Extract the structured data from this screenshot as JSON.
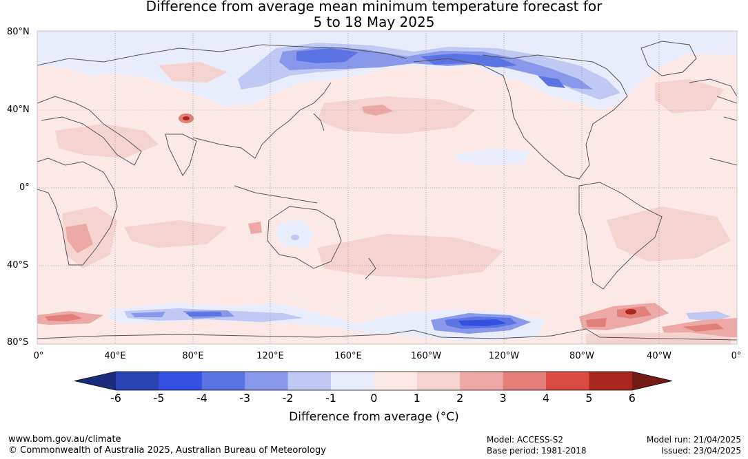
{
  "title_line1": "Difference from average mean minimum temperature forecast for",
  "title_line2": "5 to 18 May 2025",
  "lat_labels": [
    "80°N",
    "40°N",
    "0°",
    "40°S",
    "80°S"
  ],
  "lon_labels": [
    "0°",
    "40°E",
    "80°E",
    "120°E",
    "160°E",
    "160°W",
    "120°W",
    "80°W",
    "40°W",
    "0°"
  ],
  "colorbar": {
    "label": "Difference from average (°C)",
    "ticks": [
      "-6",
      "-5",
      "-4",
      "-3",
      "-2",
      "-1",
      "0",
      "1",
      "2",
      "3",
      "4",
      "5",
      "6"
    ],
    "colors": [
      "#1a2c7e",
      "#2a43b2",
      "#3350e0",
      "#5b74e4",
      "#8898ea",
      "#c0c8f4",
      "#e9ecfb",
      "#fce8e6",
      "#f5d3d0",
      "#eca9a5",
      "#e27f78",
      "#d94a40",
      "#a8281f",
      "#751b16"
    ]
  },
  "footer": {
    "url": "www.bom.gov.au/climate",
    "copyright": "© Commonwealth of Australia 2025, Australian Bureau of Meteorology",
    "model": "Model: ACCESS-S2",
    "base_period": "Base period: 1981-2018",
    "model_run": "Model run: 21/04/2025",
    "issued": "Issued: 23/04/2025"
  }
}
